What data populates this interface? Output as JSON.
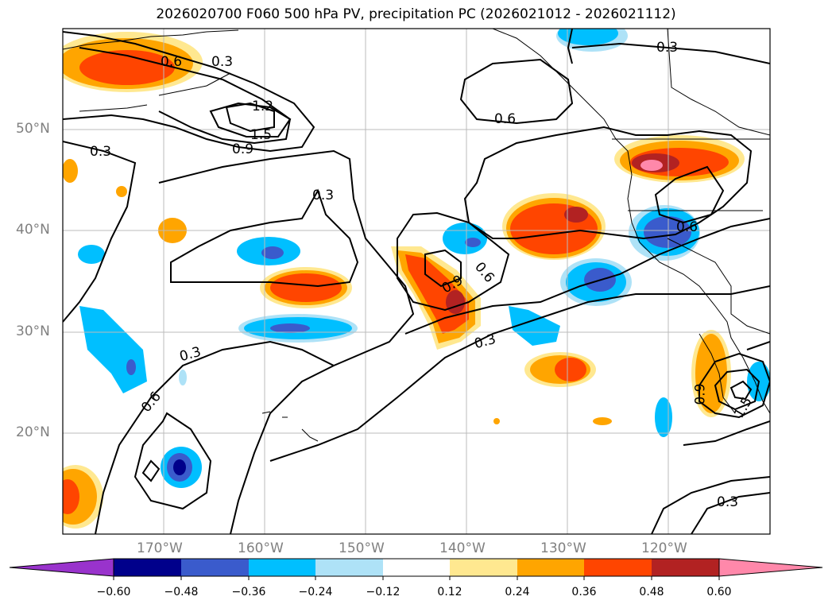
{
  "title": "2026020700 F060 500 hPa PV, precipitation PC (2026021012 - 2026021112)",
  "map": {
    "lat_labels": [
      "50°N",
      "40°N",
      "30°N",
      "20°N"
    ],
    "lon_labels": [
      "170°W",
      "160°W",
      "150°W",
      "140°W",
      "130°W",
      "120°W"
    ],
    "contour_labels": [
      "0.3",
      "0.6",
      "1.2",
      "1.5",
      "0.9",
      "0.3",
      "0.3",
      "0.6",
      "0.9",
      "0.6",
      "0.3",
      "0.6",
      "0.3",
      "0.6",
      "0.9",
      "1.5",
      "0.3",
      "0.3"
    ]
  },
  "colorbar": {
    "ticks": [
      "−0.60",
      "−0.48",
      "−0.36",
      "−0.24",
      "−0.12",
      "0.12",
      "0.24",
      "0.36",
      "0.48",
      "0.60"
    ],
    "colors": [
      "#9933cc",
      "#00008b",
      "#3a5bcc",
      "#00bfff",
      "#aee2f7",
      "#ffffff",
      "#ffe890",
      "#ffa500",
      "#ff4500",
      "#b22222",
      "#ff88aa"
    ]
  }
}
